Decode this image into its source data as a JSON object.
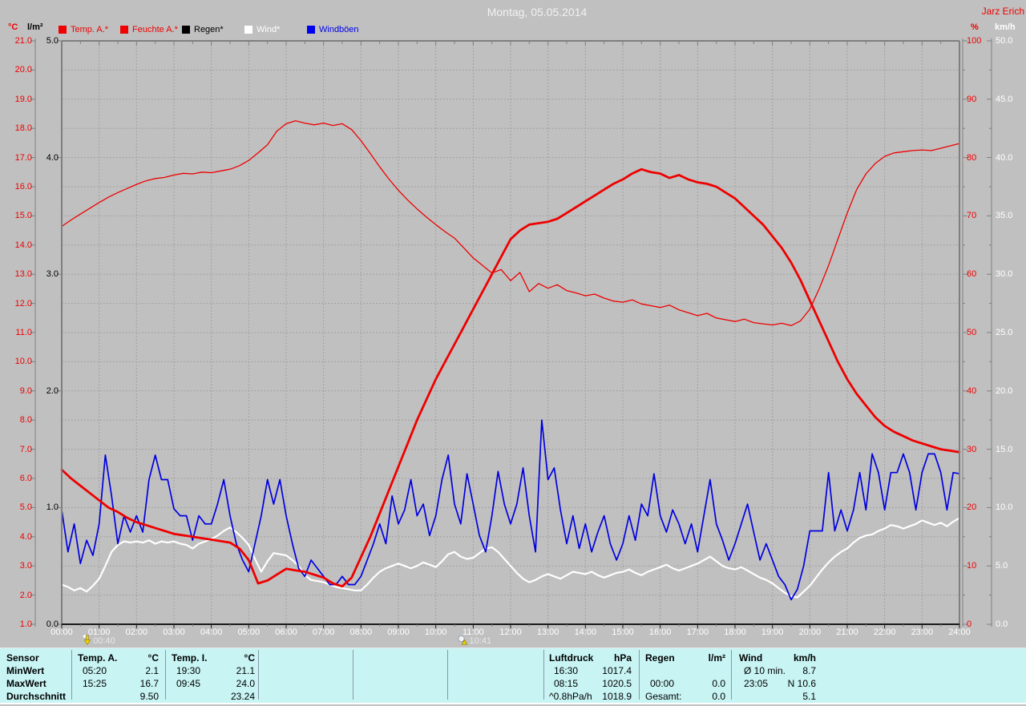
{
  "window": {
    "title": "Montag, 05.05.2014",
    "station": "Jarz Erich"
  },
  "legend": [
    {
      "label": "Temp. A.*",
      "swatch": "#f00000",
      "text_color": "#ee0000"
    },
    {
      "label": "Feuchte A.*",
      "swatch": "#f00000",
      "text_color": "#ee0000"
    },
    {
      "label": "Regen*",
      "swatch": "#000000",
      "text_color": "#000000"
    },
    {
      "label": "Wind*",
      "swatch": "#ffffff",
      "text_color": "#ffffff"
    },
    {
      "label": "Windböen",
      "swatch": "#0000f0",
      "text_color": "#0000e8"
    }
  ],
  "axes": {
    "temp_c": {
      "unit": "°C",
      "color": "#ee0000",
      "ticks": [
        "21.0",
        "20.0",
        "19.0",
        "18.0",
        "17.0",
        "16.0",
        "15.0",
        "14.0",
        "13.0",
        "12.0",
        "11.0",
        "10.0",
        "9.0",
        "8.0",
        "7.0",
        "6.0",
        "5.0",
        "4.0",
        "3.0",
        "2.0",
        "1.0"
      ]
    },
    "rain_lm2": {
      "unit": "l/m²",
      "color": "#000000",
      "ticks": [
        "5.0",
        "4.0",
        "3.0",
        "2.0",
        "1.0",
        "0.0"
      ]
    },
    "humidity_pct": {
      "unit": "%",
      "color": "#ee0000",
      "ticks": [
        "100",
        "90",
        "80",
        "70",
        "60",
        "50",
        "40",
        "30",
        "20",
        "10",
        "0"
      ]
    },
    "wind_kmh": {
      "unit": "km/h",
      "color": "#ffffff",
      "ticks": [
        "50.0",
        "45.0",
        "40.0",
        "35.0",
        "30.0",
        "25.0",
        "20.0",
        "15.0",
        "10.0",
        "5.0",
        "0.0"
      ]
    },
    "time": {
      "ticks": [
        "00:00",
        "01:00",
        "02:00",
        "03:00",
        "04:00",
        "05:00",
        "06:00",
        "07:00",
        "08:00",
        "09:00",
        "10:00",
        "11:00",
        "12:00",
        "13:00",
        "14:00",
        "15:00",
        "16:00",
        "17:00",
        "18:00",
        "19:00",
        "20:00",
        "21:00",
        "22:00",
        "23:00",
        "24:00"
      ]
    }
  },
  "markers": [
    {
      "time": "00:40",
      "icon": "moon-set-icon"
    },
    {
      "time": "10:41",
      "icon": "moon-rise-icon"
    }
  ],
  "chart_data": {
    "type": "line",
    "title": "Montag, 05.05.2014",
    "x_range_hours": [
      0,
      24
    ],
    "grid": true,
    "axis_ranges": {
      "temp_c": [
        1,
        21
      ],
      "rain_lm2": [
        0,
        5
      ],
      "humidity_pct": [
        0,
        100
      ],
      "wind_kmh": [
        0,
        50
      ]
    },
    "series": [
      {
        "name": "Regen*",
        "unit": "l/m²",
        "axis": "rain_lm2",
        "color": "#000000",
        "width": 1.2,
        "step_min": 60,
        "values": [
          0,
          0,
          0,
          0,
          0,
          0,
          0,
          0,
          0,
          0,
          0,
          0,
          0,
          0,
          0,
          0,
          0,
          0,
          0,
          0,
          0,
          0,
          0,
          0,
          0
        ]
      },
      {
        "name": "Feuchte A.*",
        "unit": "%",
        "axis": "humidity_pct",
        "color": "#ee0000",
        "width": 1.3,
        "step_min": 15,
        "values": [
          68.2,
          69.3,
          70.3,
          71.3,
          72.3,
          73.2,
          74.0,
          74.7,
          75.4,
          76.0,
          76.4,
          76.6,
          77.0,
          77.3,
          77.2,
          77.5,
          77.4,
          77.7,
          78.0,
          78.6,
          79.5,
          80.8,
          82.2,
          84.5,
          85.8,
          86.3,
          85.9,
          85.6,
          85.9,
          85.5,
          85.8,
          84.8,
          82.9,
          80.7,
          78.4,
          76.3,
          74.4,
          72.7,
          71.2,
          69.8,
          68.5,
          67.3,
          66.2,
          64.5,
          62.8,
          61.5,
          60.2,
          60.8,
          58.9,
          60.3,
          57.0,
          58.4,
          57.6,
          58.2,
          57.2,
          56.8,
          56.3,
          56.6,
          55.9,
          55.4,
          55.2,
          55.6,
          54.9,
          54.6,
          54.3,
          54.7,
          53.9,
          53.4,
          52.9,
          53.3,
          52.5,
          52.2,
          51.9,
          52.3,
          51.7,
          51.5,
          51.3,
          51.6,
          51.2,
          52.0,
          54.0,
          57.5,
          61.5,
          66.0,
          70.5,
          74.5,
          77.2,
          79.0,
          80.2,
          80.8,
          81.0,
          81.2,
          81.3,
          81.2,
          81.6,
          82.0,
          82.4
        ]
      },
      {
        "name": "Wind*",
        "unit": "km/h",
        "axis": "wind_kmh",
        "color": "#ffffff",
        "width": 2.2,
        "step_min": 10,
        "values": [
          3.4,
          3.2,
          2.9,
          3.1,
          2.8,
          3.3,
          3.9,
          5.0,
          6.2,
          6.8,
          7.1,
          7.0,
          7.1,
          7.0,
          7.2,
          6.9,
          7.1,
          7.0,
          7.1,
          6.9,
          6.8,
          6.5,
          6.9,
          7.1,
          7.3,
          7.6,
          8.0,
          8.3,
          7.9,
          7.4,
          6.8,
          5.6,
          4.5,
          5.4,
          6.1,
          6.0,
          5.9,
          5.5,
          5.0,
          4.2,
          3.8,
          3.7,
          3.6,
          3.4,
          3.2,
          3.1,
          3.0,
          2.9,
          2.9,
          3.4,
          4.0,
          4.5,
          4.8,
          5.0,
          5.2,
          5.0,
          4.8,
          5.0,
          5.3,
          5.1,
          4.9,
          5.4,
          6.0,
          6.2,
          5.8,
          5.6,
          5.7,
          6.1,
          6.5,
          6.6,
          6.2,
          5.6,
          5.0,
          4.4,
          3.9,
          3.6,
          3.8,
          4.1,
          4.3,
          4.1,
          3.9,
          4.2,
          4.5,
          4.4,
          4.3,
          4.5,
          4.2,
          4.0,
          4.2,
          4.4,
          4.5,
          4.7,
          4.4,
          4.2,
          4.5,
          4.7,
          4.9,
          5.1,
          4.8,
          4.6,
          4.8,
          5.0,
          5.2,
          5.5,
          5.8,
          5.4,
          5.0,
          4.8,
          4.7,
          4.9,
          4.6,
          4.3,
          4.0,
          3.8,
          3.5,
          3.1,
          2.7,
          2.4,
          2.3,
          2.8,
          3.3,
          4.0,
          4.7,
          5.3,
          5.8,
          6.2,
          6.5,
          7.0,
          7.4,
          7.6,
          7.7,
          8.0,
          8.2,
          8.5,
          8.4,
          8.2,
          8.4,
          8.6,
          8.9,
          8.7,
          8.5,
          8.7,
          8.4,
          8.8,
          9.1
        ]
      },
      {
        "name": "Windböen",
        "unit": "km/h",
        "axis": "wind_kmh",
        "color": "#0000e0",
        "width": 1.7,
        "step_min": 10,
        "values": [
          9.8,
          6.2,
          8.6,
          5.2,
          7.2,
          5.9,
          8.6,
          14.5,
          11.0,
          6.9,
          9.3,
          7.9,
          9.3,
          7.9,
          12.4,
          14.5,
          12.4,
          12.4,
          9.9,
          9.3,
          9.3,
          7.2,
          9.3,
          8.6,
          8.6,
          10.3,
          12.4,
          9.3,
          6.9,
          5.5,
          4.5,
          6.9,
          9.3,
          12.4,
          10.3,
          12.4,
          9.3,
          6.9,
          4.8,
          4.1,
          5.5,
          4.8,
          4.1,
          3.4,
          3.4,
          4.1,
          3.4,
          3.4,
          4.1,
          5.5,
          6.9,
          8.6,
          6.9,
          11.0,
          8.6,
          9.8,
          12.4,
          9.3,
          10.3,
          7.6,
          9.3,
          12.4,
          14.5,
          10.3,
          8.6,
          12.9,
          10.3,
          7.6,
          6.2,
          9.3,
          13.1,
          10.3,
          8.6,
          10.3,
          13.4,
          9.3,
          6.2,
          17.5,
          12.4,
          13.4,
          9.8,
          6.9,
          9.3,
          6.5,
          8.6,
          6.2,
          7.9,
          9.3,
          6.9,
          5.5,
          6.9,
          9.3,
          7.2,
          10.3,
          9.3,
          12.9,
          9.3,
          7.9,
          9.8,
          8.6,
          6.9,
          8.6,
          6.2,
          9.3,
          12.4,
          8.6,
          7.2,
          5.5,
          6.9,
          8.6,
          10.3,
          7.9,
          5.5,
          6.9,
          5.5,
          4.1,
          3.4,
          2.1,
          3.0,
          5.0,
          8.0,
          8.0,
          8.0,
          13.0,
          8.0,
          9.8,
          8.0,
          9.8,
          13.0,
          9.8,
          14.6,
          13.0,
          9.8,
          13.0,
          13.0,
          14.6,
          13.0,
          9.8,
          13.0,
          14.6,
          14.6,
          13.0,
          9.8,
          13.0,
          12.9
        ]
      },
      {
        "name": "Temp. A.*",
        "unit": "°C",
        "axis": "temp_c",
        "color": "#ee0000",
        "width": 2.8,
        "step_min": 15,
        "values": [
          6.3,
          6.0,
          5.75,
          5.5,
          5.25,
          5.0,
          4.85,
          4.65,
          4.5,
          4.4,
          4.3,
          4.2,
          4.1,
          4.05,
          4.0,
          3.95,
          3.9,
          3.85,
          3.8,
          3.6,
          3.2,
          2.4,
          2.5,
          2.7,
          2.9,
          2.85,
          2.8,
          2.7,
          2.6,
          2.4,
          2.3,
          2.6,
          3.3,
          4.0,
          4.8,
          5.6,
          6.4,
          7.2,
          8.0,
          8.7,
          9.4,
          10.0,
          10.6,
          11.2,
          11.8,
          12.4,
          13.0,
          13.6,
          14.2,
          14.5,
          14.7,
          14.75,
          14.8,
          14.9,
          15.1,
          15.3,
          15.5,
          15.7,
          15.9,
          16.1,
          16.25,
          16.45,
          16.6,
          16.5,
          16.45,
          16.3,
          16.4,
          16.25,
          16.15,
          16.1,
          16.0,
          15.8,
          15.6,
          15.3,
          15.0,
          14.7,
          14.3,
          13.9,
          13.4,
          12.8,
          12.1,
          11.4,
          10.7,
          10.0,
          9.4,
          8.9,
          8.5,
          8.1,
          7.8,
          7.6,
          7.45,
          7.3,
          7.2,
          7.1,
          7.0,
          6.95,
          6.9
        ]
      }
    ]
  },
  "table": {
    "row_labels": [
      "Sensor",
      "MinWert",
      "MaxWert",
      "Durchschnitt"
    ],
    "columns": [
      {
        "name": "Temp. A.",
        "unit": "°C",
        "min_time": "05:20",
        "min_value": "2.1",
        "max_time": "15:25",
        "max_value": "16.7",
        "avg_label": "",
        "avg_value": "9.50"
      },
      {
        "name": "Temp. I.",
        "unit": "°C",
        "min_time": "19:30",
        "min_value": "21.1",
        "max_time": "09:45",
        "max_value": "24.0",
        "avg_label": "",
        "avg_value": "23.24"
      },
      {
        "name": "Luftdruck",
        "unit": "hPa",
        "min_time": "16:30",
        "min_value": "1017.4",
        "max_time": "08:15",
        "max_value": "1020.5",
        "avg_label": "^0.8hPa/h",
        "avg_value": "1018.9"
      },
      {
        "name": "Regen",
        "unit": "l/m²",
        "min_time": "",
        "min_value": "",
        "max_time": "00:00",
        "max_value": "0.0",
        "avg_label": "Gesamt:",
        "avg_value": "0.0"
      },
      {
        "name": "Wind",
        "unit": "km/h",
        "min_time": "Ø 10 min.",
        "min_value": "8.7",
        "max_time": "23:05",
        "max_value": "N 10.6",
        "avg_label": "",
        "avg_value": "5.1"
      }
    ]
  }
}
